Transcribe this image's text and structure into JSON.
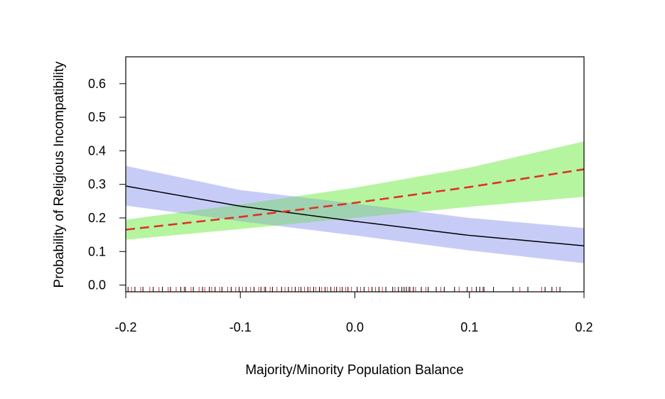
{
  "chart_data": {
    "type": "line",
    "title": "",
    "xlabel": "Majority/Minority Population Balance",
    "ylabel": "Probability of Religious Incompatibility",
    "xlim": [
      -0.2,
      0.2
    ],
    "ylim": [
      -0.02,
      0.68
    ],
    "x_ticks": [
      -0.2,
      -0.1,
      0.0,
      0.1,
      0.2
    ],
    "x_tick_labels": [
      "-0.2",
      "-0.1",
      "0.0",
      "0.1",
      "0.2"
    ],
    "y_ticks": [
      0.0,
      0.1,
      0.2,
      0.3,
      0.4,
      0.5,
      0.6
    ],
    "y_tick_labels": [
      "0.0",
      "0.1",
      "0.2",
      "0.3",
      "0.4",
      "0.5",
      "0.6"
    ],
    "grid": false,
    "legend": "none",
    "colors": {
      "series_a_line": "#000000",
      "series_a_band": "#c7ccf7",
      "series_b_line": "#e0302a",
      "series_b_band": "#b6f5a0",
      "overlap_band": "#9fd2b0"
    },
    "series": [
      {
        "style": "solid",
        "x": [
          -0.2,
          -0.1,
          0.0,
          0.1,
          0.2
        ],
        "values": [
          0.295,
          0.235,
          0.19,
          0.148,
          0.117
        ],
        "lower": [
          0.237,
          0.19,
          0.148,
          0.103,
          0.065
        ],
        "upper": [
          0.355,
          0.283,
          0.243,
          0.2,
          0.17
        ]
      },
      {
        "style": "dashed",
        "x": [
          -0.2,
          -0.1,
          0.0,
          0.1,
          0.2
        ],
        "values": [
          0.165,
          0.203,
          0.245,
          0.292,
          0.345
        ],
        "lower": [
          0.135,
          0.167,
          0.2,
          0.233,
          0.263
        ],
        "upper": [
          0.195,
          0.24,
          0.29,
          0.35,
          0.428
        ]
      }
    ],
    "rug_black": [
      -0.198,
      -0.192,
      -0.185,
      -0.176,
      -0.168,
      -0.161,
      -0.152,
      -0.148,
      -0.141,
      -0.133,
      -0.127,
      -0.122,
      -0.116,
      -0.108,
      -0.101,
      -0.095,
      -0.088,
      -0.082,
      -0.078,
      -0.072,
      -0.064,
      -0.058,
      -0.052,
      -0.047,
      -0.041,
      -0.036,
      -0.031,
      -0.026,
      -0.021,
      -0.016,
      -0.011,
      -0.006,
      0.002,
      0.008,
      0.015,
      0.021,
      0.027,
      0.033,
      0.038,
      0.041,
      0.043,
      0.045,
      0.048,
      0.051,
      0.058,
      0.064,
      0.071,
      0.078,
      0.087,
      0.098,
      0.106,
      0.109,
      0.112,
      0.121,
      0.138,
      0.151,
      0.166,
      0.172,
      0.179
    ],
    "rug_red": [
      -0.195,
      -0.187,
      -0.179,
      -0.171,
      -0.163,
      -0.156,
      -0.149,
      -0.143,
      -0.136,
      -0.131,
      -0.125,
      -0.118,
      -0.111,
      -0.104,
      -0.098,
      -0.091,
      -0.084,
      -0.079,
      -0.074,
      -0.068,
      -0.061,
      -0.055,
      -0.049,
      -0.044,
      -0.039,
      -0.034,
      -0.029,
      -0.024,
      -0.018,
      -0.013,
      -0.008,
      -0.003,
      0.005,
      0.012,
      0.018,
      0.024,
      0.035,
      0.047,
      0.053,
      0.062,
      0.075,
      0.091,
      0.102,
      0.113,
      0.144,
      0.163,
      0.176
    ]
  }
}
